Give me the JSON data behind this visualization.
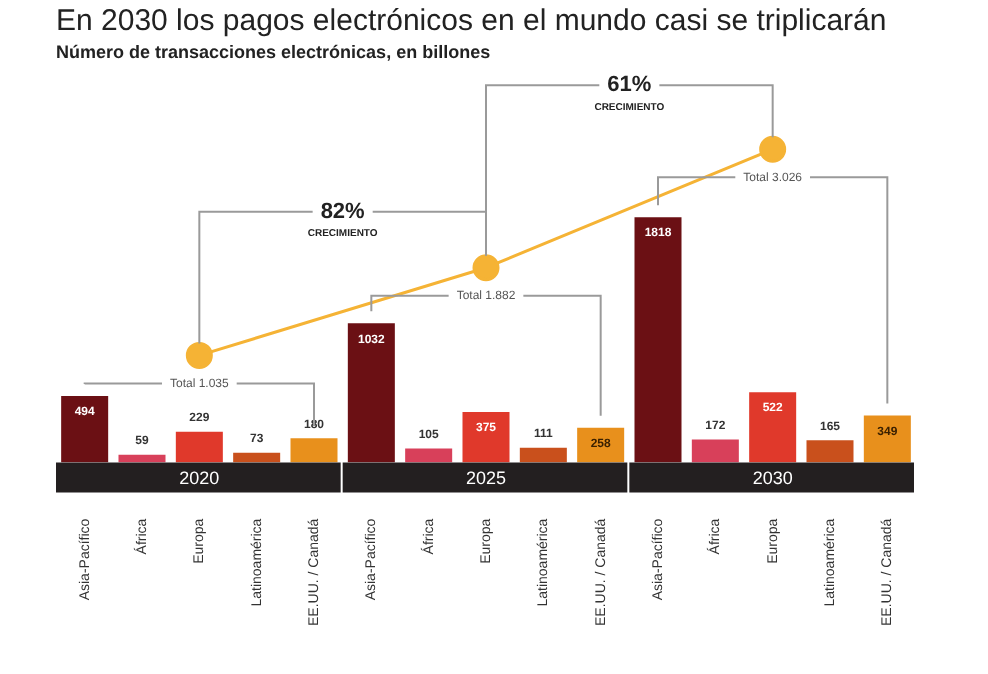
{
  "chart_data": {
    "type": "bar",
    "title": "En 2030 los pagos electrónicos en el mundo casi se triplicarán",
    "subtitle": "Número de transacciones electrónicas, en billones",
    "categories": [
      "Asia-Pacífico",
      "África",
      "Europa",
      "Latinoamérica",
      "EE.UU. / Canadá",
      "Asia-Pacífico",
      "África",
      "Europa",
      "Latinoamérica",
      "EE.UU. / Canadá",
      "Asia-Pacífico",
      "África",
      "Europa",
      "Latinoamérica",
      "EE.UU. / Canadá"
    ],
    "annotations": [
      "2020",
      "2025",
      "2030",
      "82%",
      "CRECIMIENTO",
      "61%",
      "CRECIMIENTO"
    ],
    "series": [
      {
        "colors": [
          "#6b1014",
          "#d8405a",
          "#e0392b",
          "#c9501c",
          "#e8901c",
          "#6b1014",
          "#d8405a",
          "#e0392b",
          "#c9501c",
          "#e8901c",
          "#6b1014",
          "#d8405a",
          "#e0392b",
          "#c9501c",
          "#e8901c"
        ],
        "values": [
          494,
          59,
          229,
          73,
          180,
          1032,
          105,
          375,
          111,
          258,
          1818,
          172,
          522,
          165,
          349
        ]
      },
      {
        "type": "line",
        "axis": "y2",
        "color": "#f5b335",
        "values": [
          null,
          null,
          1035,
          null,
          null,
          null,
          null,
          1882,
          null,
          null,
          null,
          null,
          3026,
          null,
          null
        ],
        "value_labels": [
          null,
          null,
          "Total 1.035",
          null,
          null,
          null,
          null,
          "Total 1.882",
          null,
          null,
          null,
          null,
          "Total 3.026",
          null,
          null
        ]
      }
    ],
    "data_labels": true,
    "tick_labels": "x",
    "grid": false,
    "legend": false,
    "marker": "circle"
  }
}
